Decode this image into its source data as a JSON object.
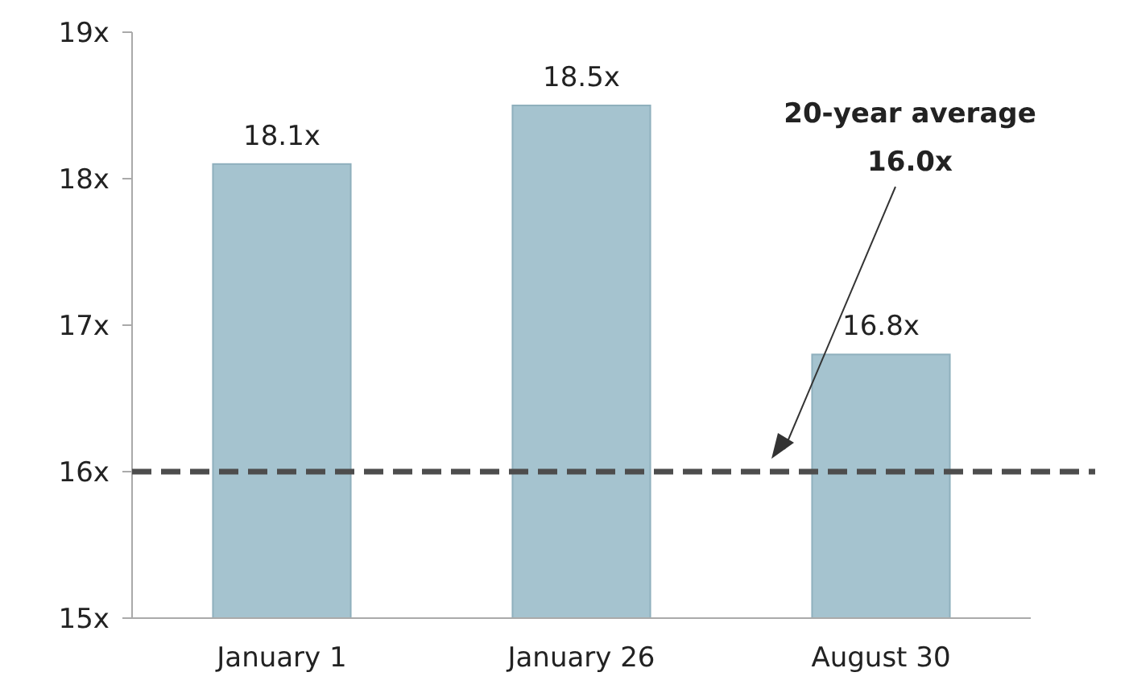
{
  "chart_data": {
    "type": "bar",
    "categories": [
      "January 1",
      "January 26",
      "August 30"
    ],
    "values": [
      18.1,
      18.5,
      16.8
    ],
    "value_labels": [
      "18.1x",
      "18.5x",
      "16.8x"
    ],
    "color": "#a5c3cf",
    "ylim": [
      15,
      19
    ],
    "yticks": [
      {
        "value": 15,
        "label": "15x"
      },
      {
        "value": 16,
        "label": "16x"
      },
      {
        "value": 17,
        "label": "17x"
      },
      {
        "value": 18,
        "label": "18x"
      },
      {
        "value": 19,
        "label": "19x"
      }
    ],
    "ref_lines": [
      {
        "axis": "y",
        "value": 16,
        "color": "#4d4d4d",
        "line_style": "dashed"
      }
    ],
    "annotations": [
      "20-year average 16.0x"
    ]
  }
}
